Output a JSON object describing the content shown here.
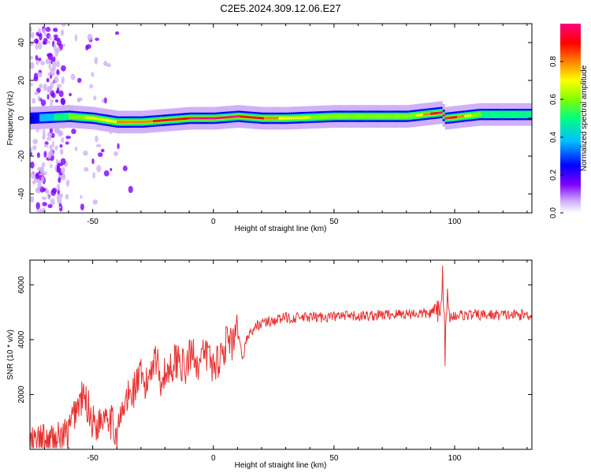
{
  "title": "C2E5.2024.309.12.06.E27",
  "chart_data": [
    {
      "type": "heatmap",
      "xlabel": "Height of straight line (km)",
      "ylabel": "Frequency (Hz)",
      "xlim": [
        -76,
        132
      ],
      "ylim": [
        -50,
        50
      ],
      "xticks": [
        -50,
        0,
        50,
        100
      ],
      "xtick_labels": [
        "-50",
        "0",
        "50",
        "100"
      ],
      "yticks": [
        -40,
        -20,
        0,
        20,
        40
      ],
      "ytick_labels": [
        "-40",
        "-20",
        "0",
        "20",
        "40"
      ],
      "colorbar": {
        "label": "Normalized spectral amplitude",
        "range": [
          0,
          1
        ],
        "ticks": [
          0.0,
          0.2,
          0.4,
          0.6,
          0.8
        ],
        "tick_labels": [
          "0.0",
          "0.2",
          "0.4",
          "0.6",
          "0.8"
        ],
        "colors": [
          "#ffffff",
          "#d0b0f8",
          "#8000ff",
          "#0000ff",
          "#00c0ff",
          "#00ff80",
          "#80ff00",
          "#ffff00",
          "#ff8000",
          "#ff0000",
          "#ff0080"
        ]
      },
      "ridge": {
        "x": [
          -76,
          -60,
          -50,
          -40,
          -30,
          -20,
          -10,
          0,
          10,
          20,
          30,
          50,
          80,
          94,
          96,
          110,
          132
        ],
        "center_freq": [
          0,
          1,
          0,
          -2,
          -2,
          -1,
          0,
          0,
          1,
          0,
          0,
          1,
          1,
          3,
          0,
          2,
          2
        ],
        "peak_amplitude": [
          0.3,
          0.55,
          0.7,
          0.75,
          0.8,
          0.9,
          0.95,
          1.0,
          0.95,
          0.85,
          0.7,
          0.6,
          0.55,
          1.0,
          1.0,
          0.55,
          0.5
        ]
      },
      "grid": false
    },
    {
      "type": "line",
      "xlabel": "Height of straight line (km)",
      "ylabel": "SNR (10 * v/v)",
      "xlim": [
        -76,
        132
      ],
      "ylim": [
        0,
        6900
      ],
      "xticks": [
        -50,
        0,
        50,
        100
      ],
      "xtick_labels": [
        "-50",
        "0",
        "50",
        "100"
      ],
      "yticks": [
        2000,
        4000,
        6000
      ],
      "ytick_labels": [
        "2000",
        "4000",
        "6000"
      ],
      "color": "#e83030",
      "series": [
        {
          "x": [
            -76,
            -70,
            -65,
            -60,
            -57,
            -54,
            -52,
            -50,
            -48,
            -46,
            -44,
            -42,
            -40,
            -38,
            -36,
            -34,
            -32,
            -30,
            -28,
            -26,
            -24,
            -22,
            -20,
            -18,
            -16,
            -14,
            -12,
            -10,
            -8,
            -6,
            -4,
            -2,
            0,
            2,
            4,
            6,
            8,
            10,
            12,
            14,
            16,
            18,
            20,
            25,
            30,
            40,
            50,
            60,
            70,
            80,
            90,
            93,
            94,
            95,
            96,
            97,
            98,
            100,
            110,
            120,
            132
          ],
          "y": [
            200,
            250,
            300,
            600,
            1500,
            1900,
            1600,
            1000,
            900,
            1200,
            1500,
            900,
            600,
            1200,
            1800,
            2000,
            2400,
            2600,
            2200,
            3000,
            3500,
            2600,
            2700,
            3000,
            3200,
            3400,
            2800,
            3300,
            3600,
            3000,
            3400,
            3500,
            3000,
            3300,
            3600,
            4000,
            3700,
            4300,
            3300,
            4100,
            4300,
            4500,
            4600,
            4700,
            4800,
            4800,
            4850,
            4850,
            4900,
            4950,
            4950,
            5200,
            4600,
            6800,
            3600,
            5400,
            4800,
            4900,
            4900,
            4900,
            4900
          ]
        }
      ],
      "grid": false
    }
  ]
}
